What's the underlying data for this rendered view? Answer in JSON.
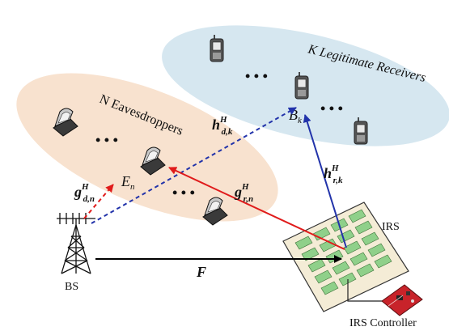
{
  "labels": {
    "legit_title": "K Legitimate Receivers",
    "eaves_title": "N Eavesdroppers",
    "bs": "BS",
    "irs": "IRS",
    "irs_controller": "IRS Controller",
    "ellipsis": "• • •",
    "channels": {
      "h_dk": {
        "base": "h",
        "sup": "H",
        "sub": "d,k"
      },
      "h_rk": {
        "base": "h",
        "sup": "H",
        "sub": "r,k"
      },
      "g_dn": {
        "base": "g",
        "sup": "H",
        "sub": "d,n"
      },
      "g_rn": {
        "base": "g",
        "sup": "H",
        "sub": "r,n"
      },
      "F": {
        "base": "F"
      }
    },
    "node_bk": {
      "base": "B",
      "sub": "k"
    },
    "node_en": {
      "base": "E",
      "sub": "n"
    }
  },
  "colors": {
    "legit_region": "#d6e7f0",
    "eaves_region": "#f8e2cf",
    "red_arrow": "#e01b1b",
    "blue_arrow": "#2233aa",
    "black_arrow": "#000000",
    "irs_cell": "#8fd08a",
    "irs_panel": "#f4ecd6"
  },
  "icons": [
    "base-station-tower-icon",
    "phone-icon",
    "irs-panel-icon",
    "controller-board-icon"
  ]
}
